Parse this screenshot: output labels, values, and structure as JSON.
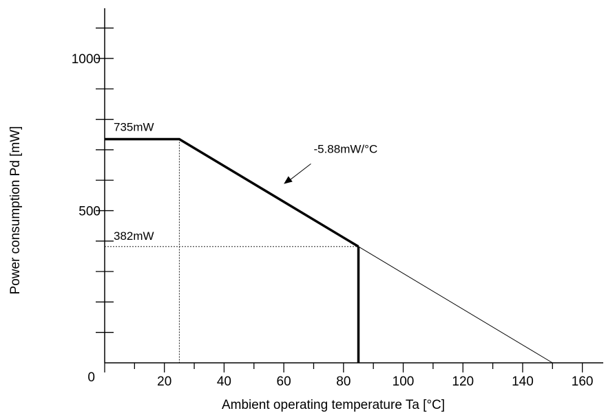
{
  "chart_data": {
    "type": "line",
    "xlabel": "Ambient operating temperature  Ta  [°C]",
    "ylabel": "Power consumption  Pd  [mW]",
    "xlim": [
      0,
      167
    ],
    "ylim": [
      0,
      1165
    ],
    "x_ticks": [
      0,
      20,
      40,
      60,
      80,
      100,
      120,
      140,
      160
    ],
    "x_tick_labels": [
      "0",
      "20",
      "40",
      "60",
      "80",
      "100",
      "120",
      "140",
      "160"
    ],
    "x_minor_step": 10,
    "y_ticks": [
      0,
      500,
      1000
    ],
    "y_tick_labels": [
      "0",
      "500",
      "1000"
    ],
    "y_minor_step": 100,
    "grid": false,
    "series": [
      {
        "style": "bold",
        "x": [
          0,
          25,
          85
        ],
        "y": [
          735,
          735,
          382
        ]
      },
      {
        "style": "bold",
        "x": [
          85,
          85
        ],
        "y": [
          382,
          0
        ]
      },
      {
        "style": "thin",
        "x": [
          85,
          150
        ],
        "y": [
          382,
          0
        ]
      }
    ],
    "reference_lines": [
      {
        "style": "dotted",
        "x": [
          25,
          25
        ],
        "y": [
          735,
          0
        ]
      },
      {
        "style": "dotted",
        "x": [
          0,
          85
        ],
        "y": [
          382,
          382
        ]
      }
    ],
    "annotations": [
      {
        "text": "735mW",
        "x": 3,
        "y": 762
      },
      {
        "text": "382mW",
        "x": 3,
        "y": 404
      },
      {
        "text": "-5.88mW/°C",
        "x": 70,
        "y": 690,
        "arrow_to": [
          60,
          588
        ]
      }
    ]
  }
}
